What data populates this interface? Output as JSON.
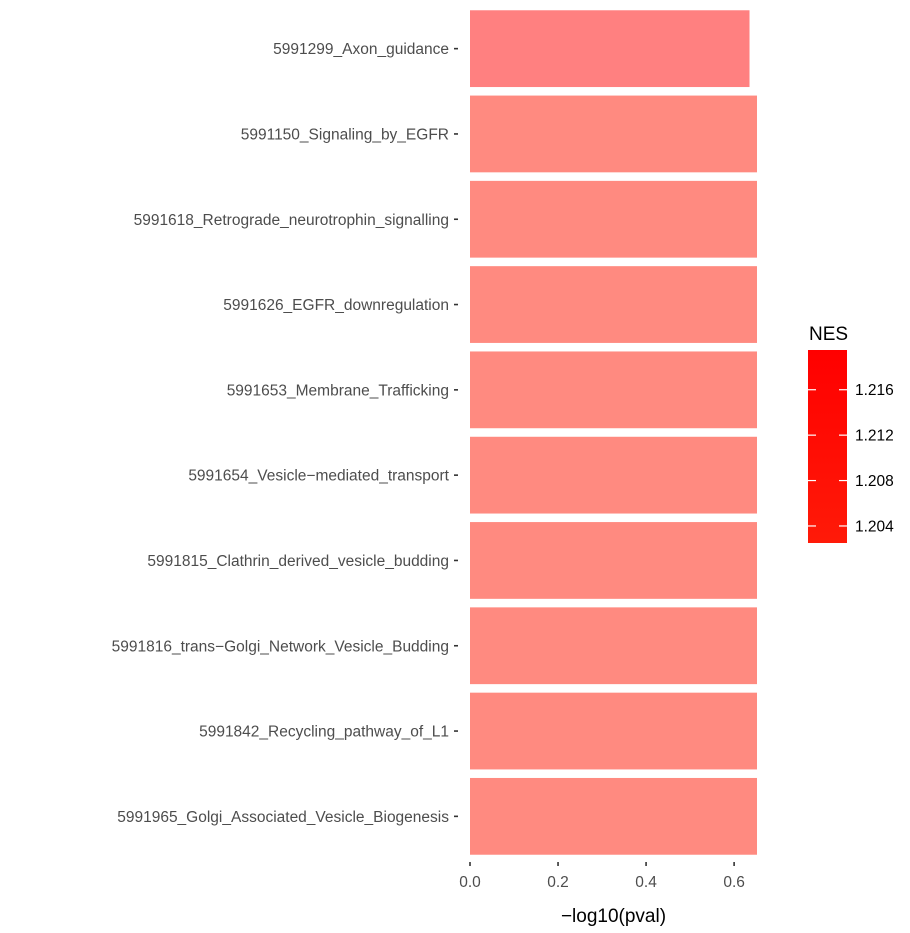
{
  "chart_data": {
    "type": "bar",
    "orientation": "horizontal",
    "categories": [
      "5991299_Axon_guidance",
      "5991150_Signaling_by_EGFR",
      "5991618_Retrograde_neurotrophin_signalling",
      "5991626_EGFR_downregulation",
      "5991653_Membrane_Trafficking",
      "5991654_Vesicle−mediated_transport",
      "5991815_Clathrin_derived_vesicle_budding",
      "5991816_trans−Golgi_Network_Vesicle_Budding",
      "5991842_Recycling_pathway_of_L1",
      "5991965_Golgi_Associated_Vesicle_Biogenesis"
    ],
    "values": [
      0.635,
      0.652,
      0.652,
      0.652,
      0.652,
      0.652,
      0.652,
      0.652,
      0.652,
      0.652
    ],
    "bar_colors": [
      "#FF8080",
      "#FF8A80",
      "#FF8A80",
      "#FF8A80",
      "#FF8A80",
      "#FF8A80",
      "#FF8A80",
      "#FF8A80",
      "#FF8A80",
      "#FF8A80"
    ],
    "xlabel": "−log10(pval)",
    "ylabel": "",
    "xlim": [
      0,
      0.652
    ],
    "xticks": [
      0.0,
      0.2,
      0.4,
      0.6
    ],
    "xtick_labels": [
      "0.0",
      "0.2",
      "0.4",
      "0.6"
    ],
    "grid": false,
    "legend": {
      "title": "NES",
      "placement": "right",
      "type": "colorbar",
      "range": [
        1.2025,
        1.2195
      ],
      "ticks": [
        1.204,
        1.208,
        1.212,
        1.216
      ],
      "tick_labels": [
        "1.204",
        "1.208",
        "1.212",
        "1.216"
      ],
      "color_low": "#FF1A08",
      "color_high": "#FF0000"
    }
  }
}
